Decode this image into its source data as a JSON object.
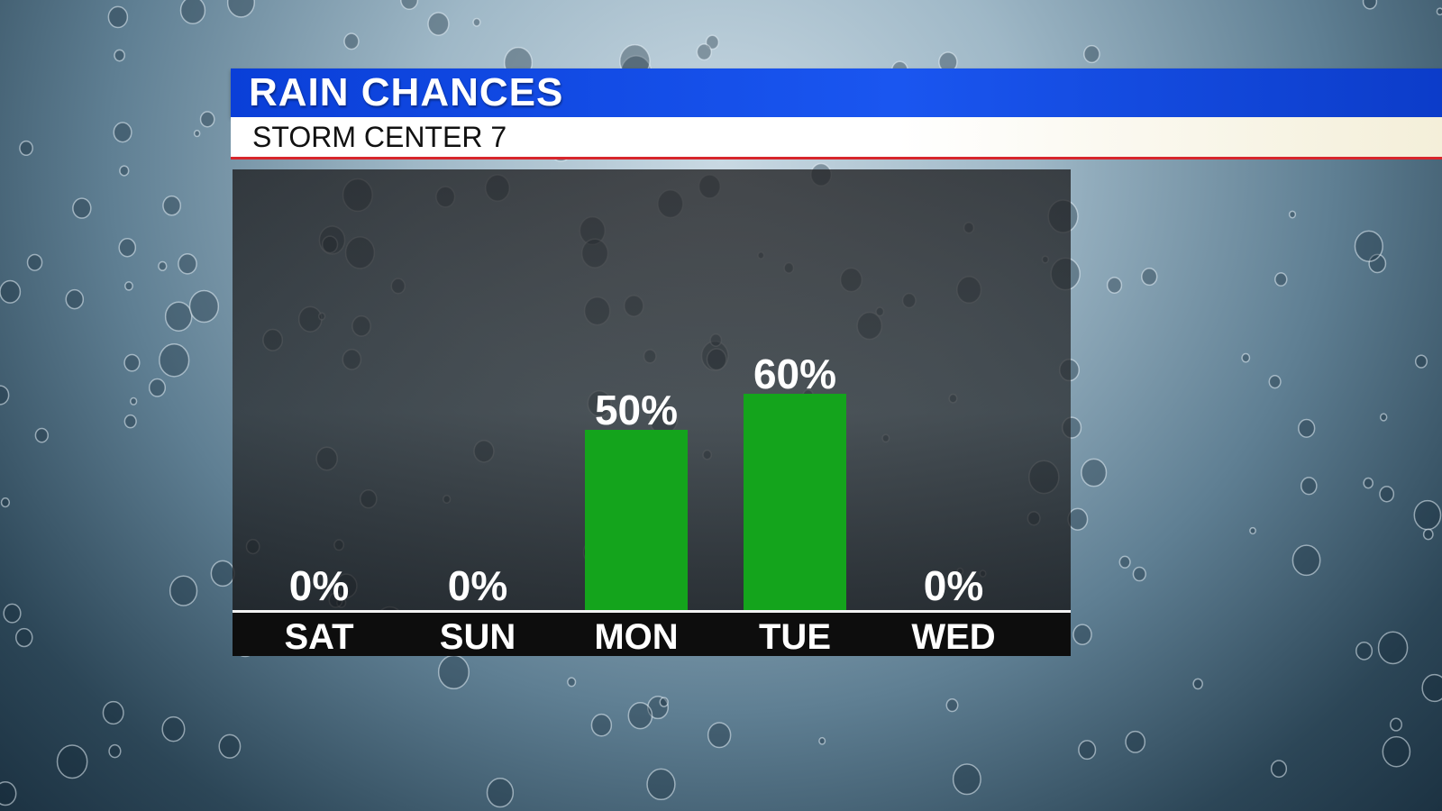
{
  "header": {
    "title": "RAIN CHANCES",
    "subtitle": "STORM CENTER 7"
  },
  "colors": {
    "title_bar": "#1a56f0",
    "bar_fill": "#14a41c",
    "axis_band": "#0d0d0d"
  },
  "chart_data": {
    "type": "bar",
    "categories": [
      "SAT",
      "SUN",
      "MON",
      "TUE",
      "WED"
    ],
    "values": [
      0,
      0,
      50,
      60,
      0
    ],
    "value_labels": [
      "0%",
      "0%",
      "50%",
      "60%",
      "0%"
    ],
    "ylim": [
      0,
      100
    ],
    "grid": false,
    "legend": "none",
    "xlabel": "",
    "ylabel": ""
  }
}
